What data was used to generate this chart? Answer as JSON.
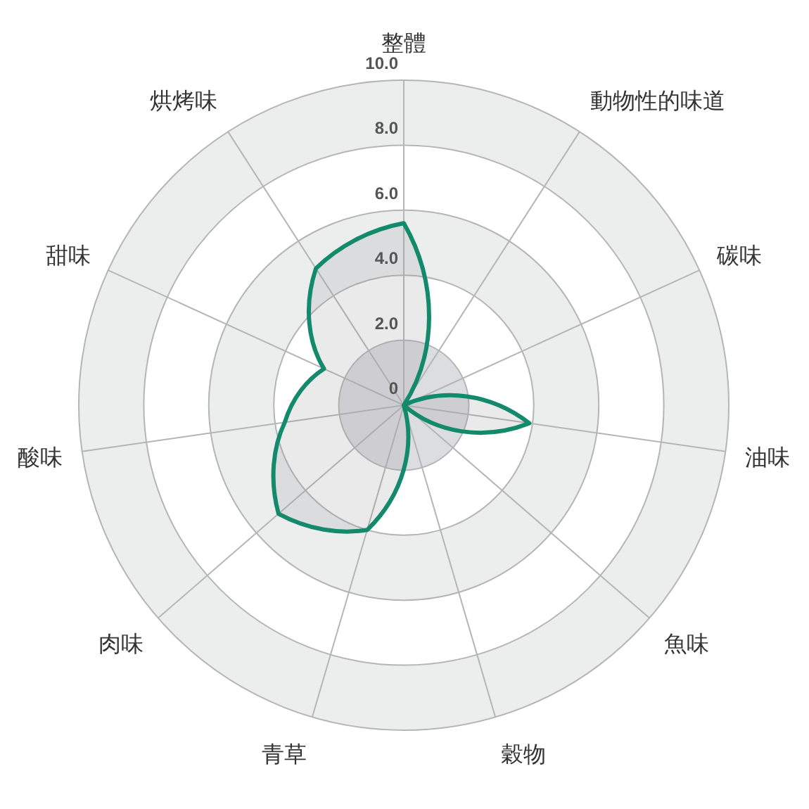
{
  "chart_data": {
    "type": "radar",
    "categories": [
      "整體",
      "動物性的味道",
      "碳味",
      "油味",
      "魚味",
      "穀物",
      "青草",
      "肉味",
      "酸味",
      "甜味",
      "烘烤味"
    ],
    "series": [
      {
        "color": "#138a6c",
        "values": [
          5.6,
          0,
          0,
          3.9,
          0,
          0,
          4.0,
          5.1,
          3.7,
          2.7,
          5.0
        ]
      }
    ],
    "ylim": [
      0,
      10
    ],
    "yticks": [
      0,
      {
        "value": 2,
        "label": "2.0"
      },
      {
        "value": 4,
        "label": "4.0"
      },
      {
        "value": 6,
        "label": "6.0"
      },
      {
        "value": 8,
        "label": "8.0"
      },
      {
        "value": 10,
        "label": "10.0"
      }
    ],
    "grid": true
  }
}
